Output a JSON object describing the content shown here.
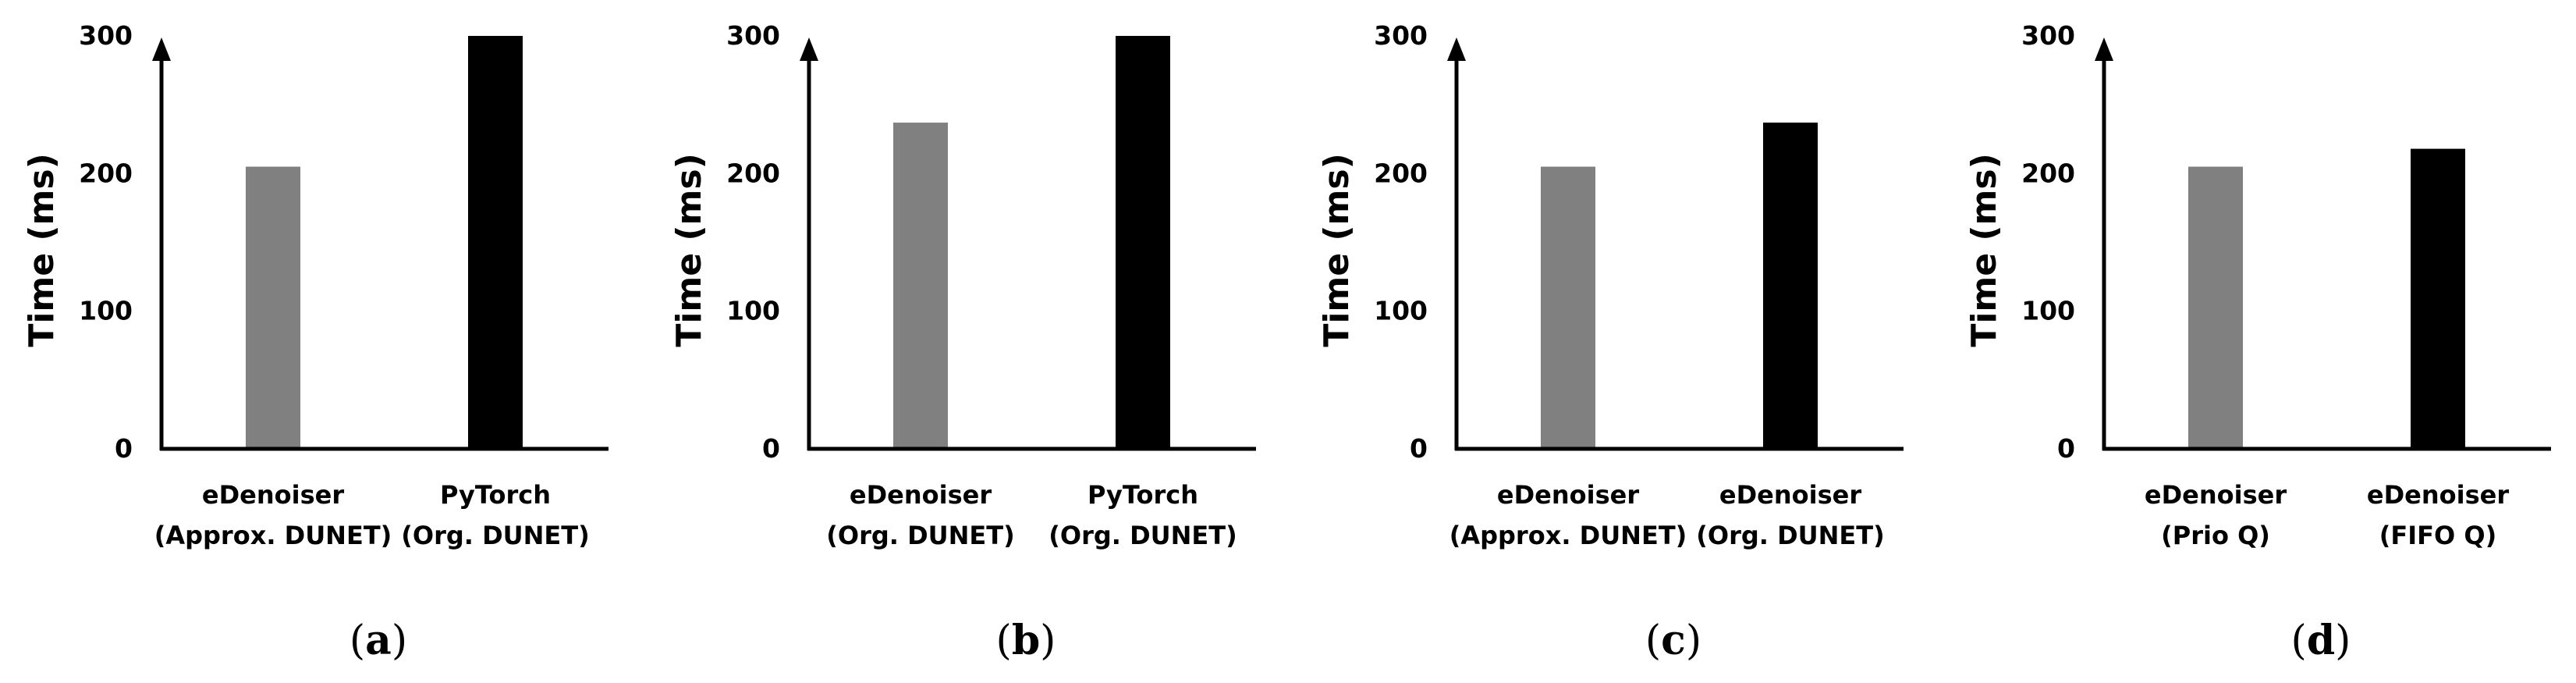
{
  "chart_data": [
    {
      "type": "bar",
      "panel_label": "(a)",
      "categories": [
        [
          "eDenoiser",
          "(Approx. DUNET)"
        ],
        [
          "PyTorch",
          "(Org. DUNET)"
        ]
      ],
      "values": [
        205,
        300
      ],
      "colors": [
        "#808080",
        "#000000"
      ],
      "ylabel": "Time (ms)",
      "ylim": [
        0,
        300
      ],
      "yticks": [
        0,
        100,
        200,
        300
      ],
      "grid": false,
      "legend": "none"
    },
    {
      "type": "bar",
      "panel_label": "(b)",
      "categories": [
        [
          "eDenoiser",
          "(Org. DUNET)"
        ],
        [
          "PyTorch",
          "(Org. DUNET)"
        ]
      ],
      "values": [
        237,
        300
      ],
      "colors": [
        "#808080",
        "#000000"
      ],
      "ylabel": "Time (ms)",
      "ylim": [
        0,
        300
      ],
      "yticks": [
        0,
        100,
        200,
        300
      ],
      "grid": false,
      "legend": "none"
    },
    {
      "type": "bar",
      "panel_label": "(c)",
      "categories": [
        [
          "eDenoiser",
          "(Approx. DUNET)"
        ],
        [
          "eDenoiser",
          "(Org. DUNET)"
        ]
      ],
      "values": [
        205,
        237
      ],
      "colors": [
        "#808080",
        "#000000"
      ],
      "ylabel": "Time (ms)",
      "ylim": [
        0,
        300
      ],
      "yticks": [
        0,
        100,
        200,
        300
      ],
      "grid": false,
      "legend": "none"
    },
    {
      "type": "bar",
      "panel_label": "(d)",
      "categories": [
        [
          "eDenoiser",
          "(Prio Q)"
        ],
        [
          "eDenoiser",
          "(FIFO Q)"
        ]
      ],
      "values": [
        205,
        218
      ],
      "colors": [
        "#808080",
        "#000000"
      ],
      "ylabel": "Time (ms)",
      "ylim": [
        0,
        300
      ],
      "yticks": [
        0,
        100,
        200,
        300
      ],
      "grid": false,
      "legend": "none"
    }
  ]
}
